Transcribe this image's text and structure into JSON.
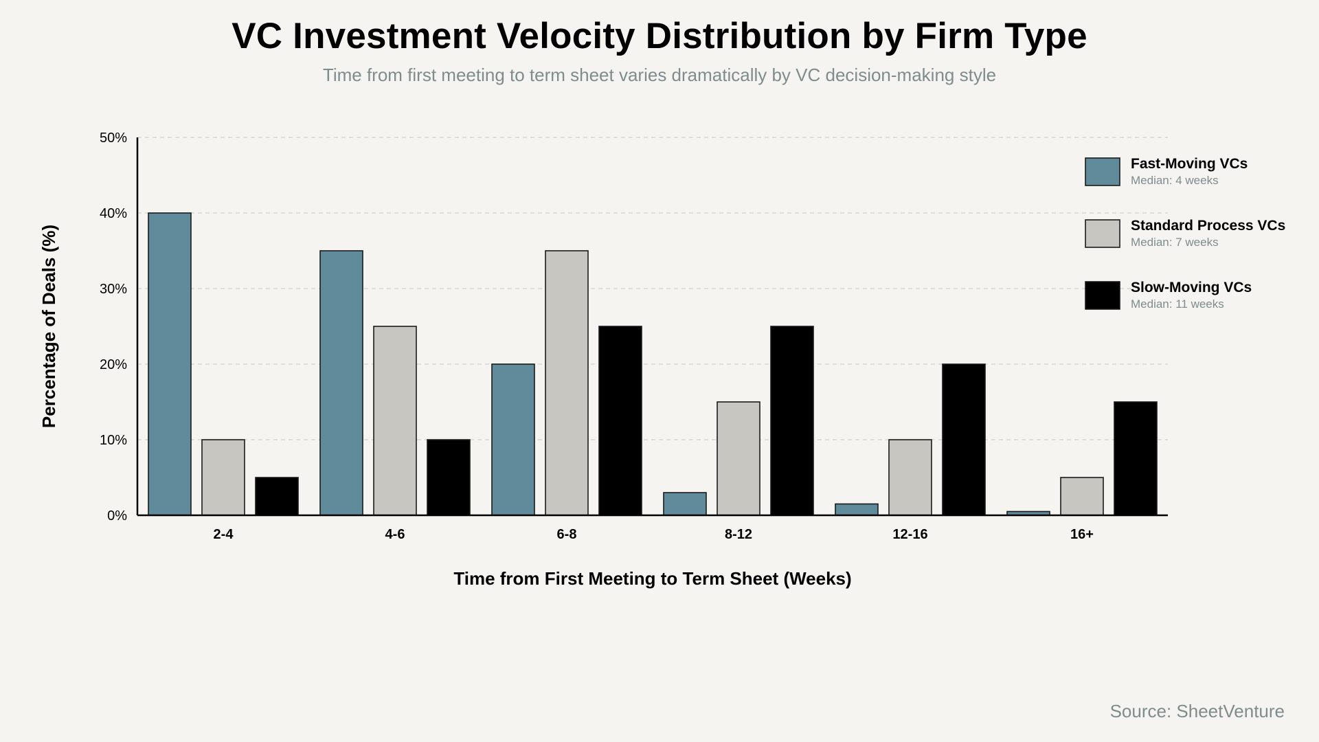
{
  "title": "VC Investment Velocity Distribution by Firm Type",
  "subtitle": "Time from first meeting to term sheet varies dramatically by VC decision-making style",
  "source": "Source: SheetVenture",
  "chart_data": {
    "type": "bar",
    "title": "VC Investment Velocity Distribution by Firm Type",
    "subtitle": "Time from first meeting to term sheet varies dramatically by VC decision-making style",
    "xlabel": "Time from First Meeting to Term Sheet (Weeks)",
    "ylabel": "Percentage of Deals (%)",
    "categories": [
      "2-4",
      "4-6",
      "6-8",
      "8-12",
      "12-16",
      "16+"
    ],
    "ylim": [
      0,
      50
    ],
    "yticks": [
      0,
      10,
      20,
      30,
      40,
      50
    ],
    "ytick_labels": [
      "0%",
      "10%",
      "20%",
      "30%",
      "40%",
      "50%"
    ],
    "grid": "horizontal dashed",
    "legend_position": "right",
    "series": [
      {
        "name": "Fast-Moving VCs",
        "note": "Median: 4 weeks",
        "color": "#5f8b9b",
        "values": [
          40,
          35,
          20,
          3,
          1.5,
          0.5
        ]
      },
      {
        "name": "Standard Process VCs",
        "note": "Median: 7 weeks",
        "color": "#c8c6c0",
        "values": [
          10,
          25,
          35,
          15,
          10,
          5
        ]
      },
      {
        "name": "Slow-Moving VCs",
        "note": "Median: 11 weeks",
        "color": "#000000",
        "values": [
          5,
          10,
          25,
          25,
          20,
          15
        ]
      }
    ]
  }
}
